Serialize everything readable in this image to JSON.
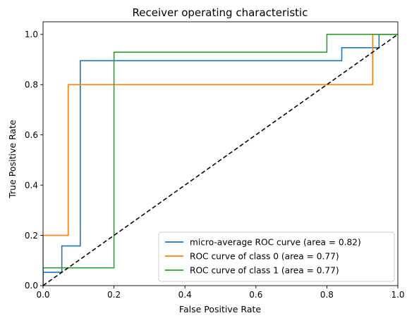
{
  "chart_data": {
    "type": "line",
    "title": "Receiver operating characteristic",
    "xlabel": "False Positive Rate",
    "ylabel": "True Positive Rate",
    "xlim": [
      0.0,
      1.0
    ],
    "ylim": [
      0.0,
      1.05
    ],
    "xticks": [
      0.0,
      0.2,
      0.4,
      0.6,
      0.8,
      1.0
    ],
    "xtick_labels": [
      "0.0",
      "0.2",
      "0.4",
      "0.6",
      "0.8",
      "1.0"
    ],
    "yticks": [
      0.0,
      0.2,
      0.4,
      0.6,
      0.8,
      1.0
    ],
    "ytick_labels": [
      "0.0",
      "0.2",
      "0.4",
      "0.6",
      "0.8",
      "1.0"
    ],
    "grid": false,
    "legend_position": "lower-right",
    "series": [
      {
        "name": "micro-average ROC curve (area = 0.82)",
        "color": "#1f77b4",
        "style": "step",
        "x": [
          0.0,
          0.0,
          0.053,
          0.053,
          0.105,
          0.105,
          0.842,
          0.842,
          0.947,
          0.947,
          1.0
        ],
        "y": [
          0.0,
          0.053,
          0.053,
          0.158,
          0.158,
          0.895,
          0.895,
          0.947,
          0.947,
          1.0,
          1.0
        ]
      },
      {
        "name": "ROC curve of class 0 (area = 0.77)",
        "color": "#ff7f0e",
        "style": "step",
        "x": [
          0.0,
          0.0,
          0.071,
          0.071,
          0.929,
          0.929,
          1.0
        ],
        "y": [
          0.0,
          0.2,
          0.2,
          0.8,
          0.8,
          1.0,
          1.0
        ]
      },
      {
        "name": "ROC curve of class 1 (area = 0.77)",
        "color": "#2ca02c",
        "style": "step",
        "x": [
          0.0,
          0.0,
          0.2,
          0.2,
          0.8,
          0.8,
          1.0
        ],
        "y": [
          0.0,
          0.071,
          0.071,
          0.929,
          0.929,
          1.0,
          1.0
        ]
      }
    ],
    "reference_line": {
      "x": [
        0.0,
        1.0
      ],
      "y": [
        0.0,
        1.0
      ],
      "color": "#000000",
      "style": "dashed"
    }
  }
}
